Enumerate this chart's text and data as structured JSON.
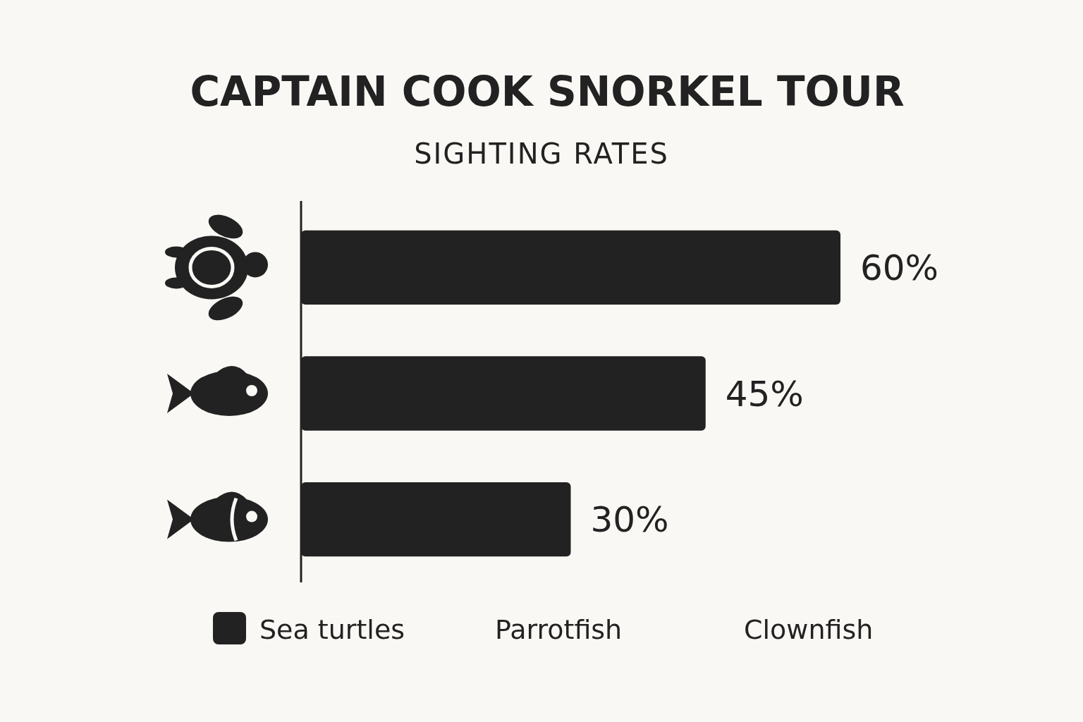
{
  "chart_data": {
    "type": "bar",
    "orientation": "horizontal",
    "title": "CAPTAIN COOK SNORKEL TOUR",
    "subtitle": "SIGHTING RATES",
    "categories": [
      null,
      null,
      null
    ],
    "values": [
      60,
      45,
      30
    ],
    "color": "#222222",
    "value_labels": [
      "60%",
      "45%",
      "30%"
    ],
    "annotations": [
      "Sea turtles",
      "Parrotfish",
      "Clownfish"
    ]
  }
}
